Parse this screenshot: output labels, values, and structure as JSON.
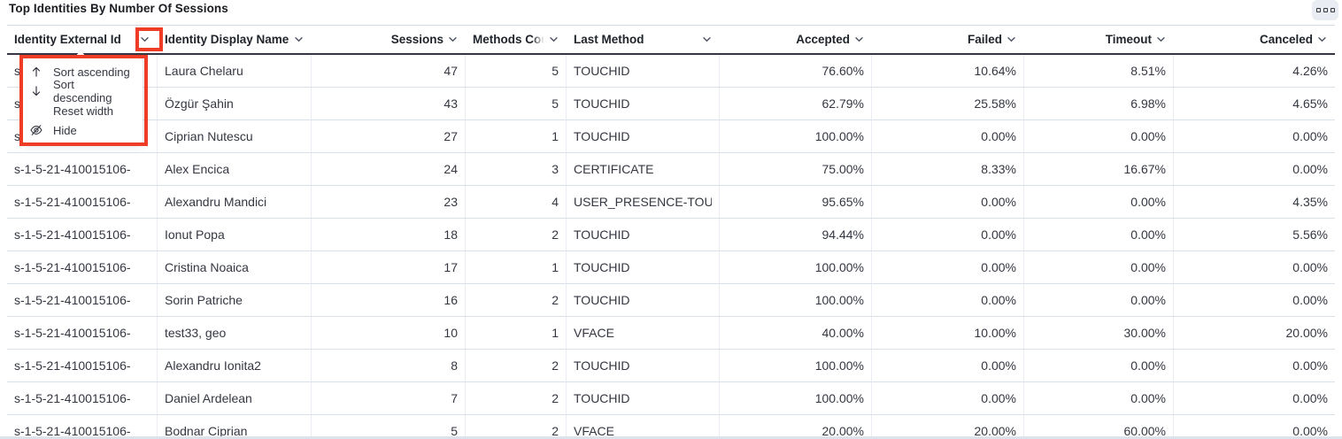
{
  "panel": {
    "title": "Top Identities By Number Of Sessions",
    "options_button": {
      "icon": "boxes-horizontal-icon"
    }
  },
  "annotation_color": "#ee3c26",
  "table": {
    "columns": [
      {
        "key": "identity_external_id",
        "label": "Identity External Id",
        "align": "left"
      },
      {
        "key": "identity_display_name",
        "label": "Identity Display Name",
        "align": "left"
      },
      {
        "key": "sessions",
        "label": "Sessions",
        "align": "right"
      },
      {
        "key": "methods_count",
        "label": "Methods Count",
        "align": "right"
      },
      {
        "key": "last_method",
        "label": "Last Method",
        "align": "left"
      },
      {
        "key": "accepted",
        "label": "Accepted",
        "align": "right"
      },
      {
        "key": "failed",
        "label": "Failed",
        "align": "right"
      },
      {
        "key": "timeout",
        "label": "Timeout",
        "align": "right"
      },
      {
        "key": "canceled",
        "label": "Canceled",
        "align": "right"
      }
    ],
    "rows": [
      {
        "identity_external_id": "s-1-5-21-410015106-",
        "identity_display_name": "Laura Chelaru",
        "sessions": "47",
        "methods_count": "5",
        "last_method": "TOUCHID",
        "accepted": "76.60%",
        "failed": "10.64%",
        "timeout": "8.51%",
        "canceled": "4.26%"
      },
      {
        "identity_external_id": "s-1-5-21-410015106-",
        "identity_display_name": "Özgür Şahin",
        "sessions": "43",
        "methods_count": "5",
        "last_method": "TOUCHID",
        "accepted": "62.79%",
        "failed": "25.58%",
        "timeout": "6.98%",
        "canceled": "4.65%"
      },
      {
        "identity_external_id": "s-1-5-21-410015106-",
        "identity_display_name": "Ciprian Nutescu",
        "sessions": "27",
        "methods_count": "1",
        "last_method": "TOUCHID",
        "accepted": "100.00%",
        "failed": "0.00%",
        "timeout": "0.00%",
        "canceled": "0.00%"
      },
      {
        "identity_external_id": "s-1-5-21-410015106-",
        "identity_display_name": "Alex Encica",
        "sessions": "24",
        "methods_count": "3",
        "last_method": "CERTIFICATE",
        "accepted": "75.00%",
        "failed": "8.33%",
        "timeout": "16.67%",
        "canceled": "0.00%"
      },
      {
        "identity_external_id": "s-1-5-21-410015106-",
        "identity_display_name": "Alexandru Mandici",
        "sessions": "23",
        "methods_count": "4",
        "last_method": "USER_PRESENCE-TOUC",
        "accepted": "95.65%",
        "failed": "0.00%",
        "timeout": "0.00%",
        "canceled": "4.35%"
      },
      {
        "identity_external_id": "s-1-5-21-410015106-",
        "identity_display_name": "Ionut Popa",
        "sessions": "18",
        "methods_count": "2",
        "last_method": "TOUCHID",
        "accepted": "94.44%",
        "failed": "0.00%",
        "timeout": "0.00%",
        "canceled": "5.56%"
      },
      {
        "identity_external_id": "s-1-5-21-410015106-",
        "identity_display_name": "Cristina Noaica",
        "sessions": "17",
        "methods_count": "1",
        "last_method": "TOUCHID",
        "accepted": "100.00%",
        "failed": "0.00%",
        "timeout": "0.00%",
        "canceled": "0.00%"
      },
      {
        "identity_external_id": "s-1-5-21-410015106-",
        "identity_display_name": "Sorin Patriche",
        "sessions": "16",
        "methods_count": "2",
        "last_method": "TOUCHID",
        "accepted": "100.00%",
        "failed": "0.00%",
        "timeout": "0.00%",
        "canceled": "0.00%"
      },
      {
        "identity_external_id": "s-1-5-21-410015106-",
        "identity_display_name": "test33, geo",
        "sessions": "10",
        "methods_count": "1",
        "last_method": "VFACE",
        "accepted": "40.00%",
        "failed": "10.00%",
        "timeout": "30.00%",
        "canceled": "20.00%"
      },
      {
        "identity_external_id": "s-1-5-21-410015106-",
        "identity_display_name": "Alexandru Ionita2",
        "sessions": "8",
        "methods_count": "2",
        "last_method": "TOUCHID",
        "accepted": "100.00%",
        "failed": "0.00%",
        "timeout": "0.00%",
        "canceled": "0.00%"
      },
      {
        "identity_external_id": "s-1-5-21-410015106-",
        "identity_display_name": "Daniel Ardelean",
        "sessions": "7",
        "methods_count": "2",
        "last_method": "TOUCHID",
        "accepted": "100.00%",
        "failed": "0.00%",
        "timeout": "0.00%",
        "canceled": "0.00%"
      },
      {
        "identity_external_id": "s-1-5-21-410015106-",
        "identity_display_name": "Bodnar Ciprian",
        "sessions": "5",
        "methods_count": "2",
        "last_method": "VFACE",
        "accepted": "20.00%",
        "failed": "20.00%",
        "timeout": "60.00%",
        "canceled": "0.00%"
      }
    ]
  },
  "column_menu": {
    "items": [
      {
        "icon": "sort-ascending-icon",
        "label": "Sort ascending"
      },
      {
        "icon": "sort-descending-icon",
        "label": "Sort descending"
      },
      {
        "icon": null,
        "label": "Reset width"
      },
      {
        "icon": "eye-closed-icon",
        "label": "Hide"
      }
    ]
  }
}
